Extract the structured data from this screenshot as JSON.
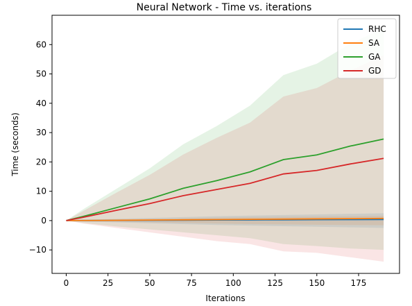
{
  "chart_data": {
    "type": "line",
    "title": "Neural Network - Time vs. iterations",
    "xlabel": "Iterations",
    "ylabel": "Time (seconds)",
    "xlim": [
      -8.5,
      199.5
    ],
    "ylim": [
      -18,
      70
    ],
    "xticks": [
      0,
      25,
      50,
      75,
      100,
      125,
      150,
      175
    ],
    "yticks": [
      -10,
      0,
      10,
      20,
      30,
      40,
      50,
      60
    ],
    "legend_position": "top-right",
    "grid": false,
    "x": [
      0,
      10,
      30,
      50,
      70,
      90,
      110,
      130,
      150,
      170,
      190
    ],
    "series": [
      {
        "name": "RHC",
        "color": "#1f77b4",
        "values": [
          0.0,
          0.02,
          0.06,
          0.1,
          0.14,
          0.18,
          0.22,
          0.26,
          0.3,
          0.34,
          0.38
        ],
        "lower": [
          0.0,
          -0.3,
          -0.6,
          -0.9,
          -1.2,
          -1.5,
          -1.7,
          -1.9,
          -2.1,
          -2.3,
          -2.5
        ],
        "upper": [
          0.0,
          0.3,
          0.6,
          0.9,
          1.2,
          1.5,
          1.7,
          1.9,
          2.1,
          2.3,
          2.5
        ]
      },
      {
        "name": "SA",
        "color": "#ff7f0e",
        "values": [
          0.0,
          0.03,
          0.1,
          0.18,
          0.26,
          0.34,
          0.42,
          0.5,
          0.58,
          0.66,
          0.74
        ],
        "lower": [
          0.0,
          -0.2,
          -0.4,
          -0.6,
          -0.8,
          -1.0,
          -1.2,
          -1.3,
          -1.4,
          -1.5,
          -1.6
        ],
        "upper": [
          0.0,
          0.2,
          0.4,
          0.6,
          0.8,
          1.0,
          1.2,
          1.3,
          1.4,
          1.5,
          1.6
        ]
      },
      {
        "name": "GA",
        "color": "#2ca02c",
        "values": [
          0.0,
          1.4,
          4.4,
          7.4,
          11.0,
          13.6,
          16.6,
          20.8,
          22.4,
          25.4,
          27.8
        ],
        "lower": [
          0.0,
          -0.8,
          -2.0,
          -3.0,
          -4.0,
          -5.0,
          -6.0,
          -8.0,
          -8.7,
          -9.5,
          -10.0
        ],
        "upper": [
          0.0,
          3.8,
          10.8,
          17.8,
          26.0,
          32.2,
          39.2,
          49.6,
          53.5,
          60.3,
          65.6
        ]
      },
      {
        "name": "GD",
        "color": "#d62728",
        "values": [
          0.0,
          1.1,
          3.5,
          5.8,
          8.5,
          10.6,
          12.7,
          15.9,
          17.1,
          19.3,
          21.2
        ],
        "lower": [
          0.0,
          -1.0,
          -2.5,
          -4.0,
          -5.5,
          -7.0,
          -8.0,
          -10.5,
          -11.0,
          -12.5,
          -14.0
        ],
        "upper": [
          0.0,
          3.2,
          9.5,
          15.6,
          22.5,
          28.2,
          33.4,
          42.3,
          45.2,
          51.1,
          56.4
        ]
      }
    ]
  }
}
